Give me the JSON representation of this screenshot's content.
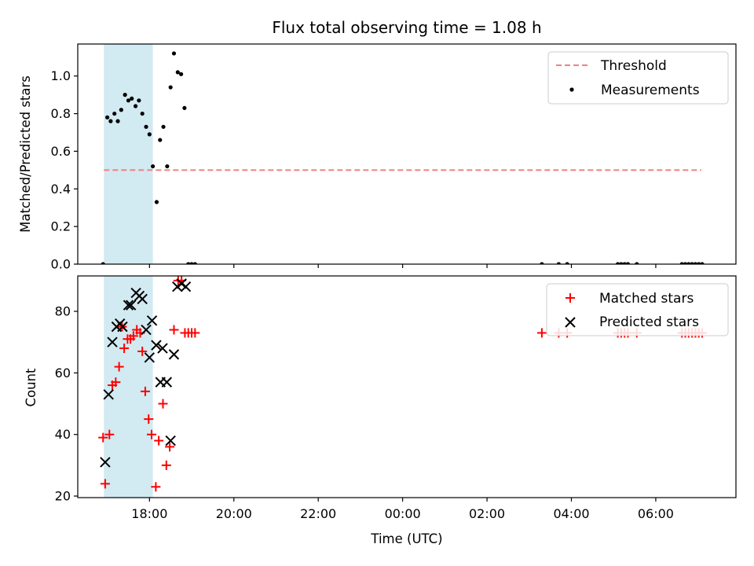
{
  "chart_data": {
    "type": "scatter",
    "title": "Flux total observing time = 1.08 h",
    "shared_x": {
      "label": "Time (UTC)",
      "unit": "hours since 00:00 of first day",
      "range": [
        16.3,
        31.9
      ],
      "ticks": [
        {
          "value": 18,
          "label": "18:00"
        },
        {
          "value": 20,
          "label": "20:00"
        },
        {
          "value": 22,
          "label": "22:00"
        },
        {
          "value": 24,
          "label": "00:00"
        },
        {
          "value": 26,
          "label": "02:00"
        },
        {
          "value": 28,
          "label": "04:00"
        },
        {
          "value": 30,
          "label": "06:00"
        }
      ]
    },
    "observing_window": {
      "start": 16.92,
      "end": 18.08,
      "color": "#add8e6"
    },
    "panels": [
      {
        "id": "ratio",
        "ylabel": "Matched/Predicted stars",
        "ylim": [
          0,
          1.17
        ],
        "yticks": [
          {
            "value": 0.0,
            "label": "0.0"
          },
          {
            "value": 0.2,
            "label": "0.2"
          },
          {
            "value": 0.4,
            "label": "0.4"
          },
          {
            "value": 0.6,
            "label": "0.6"
          },
          {
            "value": 0.8,
            "label": "0.8"
          },
          {
            "value": 1.0,
            "label": "1.0"
          }
        ],
        "threshold": {
          "name": "Threshold",
          "value": 0.5,
          "x_start": 16.92,
          "x_end": 31.08,
          "color": "#f08080"
        },
        "series": [
          {
            "name": "Measurements",
            "marker": "dot",
            "color": "#000000",
            "points": [
              [
                16.9,
                0.0
              ],
              [
                17.0,
                0.78
              ],
              [
                17.08,
                0.76
              ],
              [
                17.17,
                0.8
              ],
              [
                17.25,
                0.76
              ],
              [
                17.33,
                0.82
              ],
              [
                17.42,
                0.9
              ],
              [
                17.5,
                0.87
              ],
              [
                17.58,
                0.88
              ],
              [
                17.67,
                0.84
              ],
              [
                17.75,
                0.87
              ],
              [
                17.83,
                0.8
              ],
              [
                17.92,
                0.73
              ],
              [
                18.0,
                0.69
              ],
              [
                18.08,
                0.52
              ],
              [
                18.17,
                0.33
              ],
              [
                18.25,
                0.66
              ],
              [
                18.33,
                0.73
              ],
              [
                18.42,
                0.52
              ],
              [
                18.5,
                0.94
              ],
              [
                18.58,
                1.12
              ],
              [
                18.67,
                1.02
              ],
              [
                18.75,
                1.01
              ],
              [
                18.83,
                0.83
              ],
              [
                18.92,
                0.0
              ],
              [
                19.0,
                0.0
              ],
              [
                19.08,
                0.0
              ],
              [
                27.3,
                0.0
              ],
              [
                27.7,
                0.0
              ],
              [
                27.9,
                0.0
              ],
              [
                29.1,
                0.0
              ],
              [
                29.18,
                0.0
              ],
              [
                29.26,
                0.0
              ],
              [
                29.34,
                0.0
              ],
              [
                29.55,
                0.0
              ],
              [
                30.62,
                0.0
              ],
              [
                30.7,
                0.0
              ],
              [
                30.78,
                0.0
              ],
              [
                30.86,
                0.0
              ],
              [
                30.94,
                0.0
              ],
              [
                31.02,
                0.0
              ],
              [
                31.1,
                0.0
              ]
            ]
          }
        ],
        "legend": {
          "position": "top-right",
          "entries": [
            "Threshold",
            "Measurements"
          ]
        }
      },
      {
        "id": "count",
        "ylabel": "Count",
        "ylim": [
          19.5,
          91.5
        ],
        "yticks": [
          {
            "value": 20,
            "label": "20"
          },
          {
            "value": 40,
            "label": "40"
          },
          {
            "value": 60,
            "label": "60"
          },
          {
            "value": 80,
            "label": "80"
          }
        ],
        "series": [
          {
            "name": "Matched stars",
            "marker": "plus",
            "color": "#ff0000",
            "points": [
              [
                16.9,
                39
              ],
              [
                16.95,
                24
              ],
              [
                17.05,
                40
              ],
              [
                17.12,
                56
              ],
              [
                17.2,
                57
              ],
              [
                17.28,
                62
              ],
              [
                17.35,
                75
              ],
              [
                17.4,
                68
              ],
              [
                17.48,
                71
              ],
              [
                17.55,
                71
              ],
              [
                17.62,
                72
              ],
              [
                17.7,
                74
              ],
              [
                17.78,
                73
              ],
              [
                17.83,
                67
              ],
              [
                17.9,
                54
              ],
              [
                17.98,
                45
              ],
              [
                18.05,
                40
              ],
              [
                18.15,
                23
              ],
              [
                18.22,
                38
              ],
              [
                18.32,
                50
              ],
              [
                18.4,
                30
              ],
              [
                18.48,
                36
              ],
              [
                18.58,
                74
              ],
              [
                18.68,
                90
              ],
              [
                18.76,
                90
              ],
              [
                18.84,
                73
              ],
              [
                18.92,
                73
              ],
              [
                19.0,
                73
              ],
              [
                19.08,
                73
              ],
              [
                27.3,
                73
              ],
              [
                27.7,
                73
              ],
              [
                27.9,
                73
              ],
              [
                29.1,
                73
              ],
              [
                29.18,
                73
              ],
              [
                29.26,
                73
              ],
              [
                29.34,
                73
              ],
              [
                29.55,
                73
              ],
              [
                30.62,
                73
              ],
              [
                30.7,
                73
              ],
              [
                30.78,
                73
              ],
              [
                30.86,
                73
              ],
              [
                30.94,
                73
              ],
              [
                31.02,
                73
              ],
              [
                31.1,
                73
              ]
            ]
          },
          {
            "name": "Predicted stars",
            "marker": "x",
            "color": "#000000",
            "points": [
              [
                16.95,
                31
              ],
              [
                17.03,
                53
              ],
              [
                17.12,
                70
              ],
              [
                17.22,
                75
              ],
              [
                17.3,
                76
              ],
              [
                17.36,
                75
              ],
              [
                17.5,
                82
              ],
              [
                17.56,
                82
              ],
              [
                17.68,
                86
              ],
              [
                17.76,
                85
              ],
              [
                17.83,
                84
              ],
              [
                17.92,
                74
              ],
              [
                18.0,
                65
              ],
              [
                18.06,
                77
              ],
              [
                18.16,
                69
              ],
              [
                18.26,
                57
              ],
              [
                18.31,
                68
              ],
              [
                18.41,
                57
              ],
              [
                18.5,
                38
              ],
              [
                18.58,
                66
              ],
              [
                18.66,
                88
              ],
              [
                18.76,
                89
              ],
              [
                18.86,
                88
              ]
            ]
          }
        ],
        "legend": {
          "position": "top-right",
          "entries": [
            "Matched stars",
            "Predicted stars"
          ]
        }
      }
    ]
  }
}
